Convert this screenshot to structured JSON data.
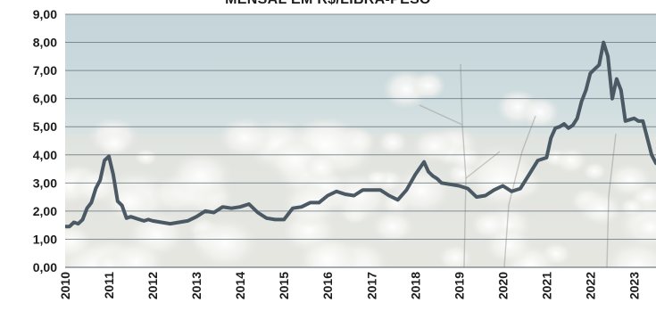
{
  "chart_data": {
    "type": "line",
    "title": "MENSAL EM R$/LIBRA-PESO",
    "xlabel": "",
    "ylabel": "",
    "ylim": [
      0,
      9
    ],
    "xlim": [
      2010,
      2023.5
    ],
    "y_ticks": [
      "0,00",
      "1,00",
      "2,00",
      "3,00",
      "4,00",
      "5,00",
      "6,00",
      "7,00",
      "8,00",
      "9,00"
    ],
    "x_ticks": [
      "2010",
      "2011",
      "2012",
      "2013",
      "2014",
      "2015",
      "2016",
      "2017",
      "2018",
      "2019",
      "2020",
      "2021",
      "2022",
      "2023"
    ],
    "grid": true,
    "legend": "none",
    "background_image": "cotton-field-photo",
    "series": [
      {
        "color": "#4a5963",
        "x": [
          2010.0,
          2010.1,
          2010.2,
          2010.3,
          2010.4,
          2010.5,
          2010.6,
          2010.7,
          2010.8,
          2010.9,
          2011.0,
          2011.1,
          2011.2,
          2011.3,
          2011.4,
          2011.5,
          2011.6,
          2011.7,
          2011.8,
          2011.9,
          2012.0,
          2012.2,
          2012.4,
          2012.6,
          2012.8,
          2013.0,
          2013.2,
          2013.4,
          2013.6,
          2013.8,
          2014.0,
          2014.2,
          2014.4,
          2014.6,
          2014.8,
          2015.0,
          2015.2,
          2015.4,
          2015.6,
          2015.8,
          2016.0,
          2016.2,
          2016.4,
          2016.6,
          2016.8,
          2017.0,
          2017.2,
          2017.4,
          2017.6,
          2017.8,
          2018.0,
          2018.2,
          2018.3,
          2018.4,
          2018.5,
          2018.6,
          2018.8,
          2019.0,
          2019.2,
          2019.4,
          2019.6,
          2019.8,
          2020.0,
          2020.2,
          2020.4,
          2020.6,
          2020.8,
          2021.0,
          2021.1,
          2021.2,
          2021.3,
          2021.4,
          2021.5,
          2021.6,
          2021.7,
          2021.8,
          2021.9,
          2022.0,
          2022.1,
          2022.2,
          2022.3,
          2022.4,
          2022.5,
          2022.6,
          2022.7,
          2022.8,
          2022.9,
          2023.0,
          2023.1,
          2023.2,
          2023.3,
          2023.4,
          2023.5
        ],
        "y": [
          1.45,
          1.45,
          1.6,
          1.55,
          1.7,
          2.1,
          2.3,
          2.8,
          3.1,
          3.8,
          3.95,
          3.3,
          2.35,
          2.2,
          1.75,
          1.8,
          1.75,
          1.7,
          1.65,
          1.7,
          1.65,
          1.6,
          1.55,
          1.6,
          1.65,
          1.8,
          2.0,
          1.95,
          2.15,
          2.1,
          2.15,
          2.25,
          1.95,
          1.75,
          1.7,
          1.7,
          2.1,
          2.15,
          2.3,
          2.3,
          2.55,
          2.7,
          2.6,
          2.55,
          2.75,
          2.75,
          2.75,
          2.55,
          2.4,
          2.75,
          3.3,
          3.75,
          3.4,
          3.25,
          3.15,
          3.0,
          2.95,
          2.9,
          2.8,
          2.5,
          2.55,
          2.75,
          2.9,
          2.7,
          2.8,
          3.3,
          3.8,
          3.9,
          4.6,
          4.95,
          5.0,
          5.1,
          4.95,
          5.05,
          5.3,
          5.9,
          6.3,
          6.9,
          7.05,
          7.2,
          8.0,
          7.5,
          6.0,
          6.7,
          6.3,
          5.2,
          5.25,
          5.3,
          5.2,
          5.2,
          4.6,
          4.0,
          3.7
        ]
      }
    ]
  }
}
